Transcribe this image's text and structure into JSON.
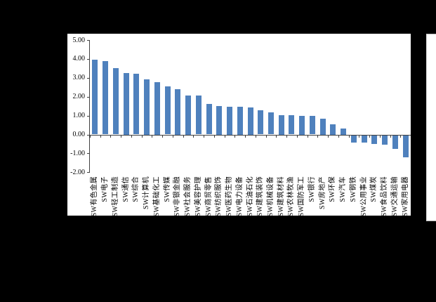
{
  "background_color": "#000000",
  "panel_color": "#ffffff",
  "chart_data": {
    "type": "bar",
    "title": "",
    "xlabel": "",
    "ylabel": "",
    "categories": [
      "SW有色金属",
      "SW电子",
      "SW轻工制造",
      "SW通信",
      "SW综合",
      "SW计算机",
      "SW基础化工",
      "SW传媒",
      "SW非银金融",
      "SW社会服务",
      "SW美容护理",
      "SW商贸零售",
      "SW纺织服饰",
      "SW医药生物",
      "SW电力设备",
      "SW石油石化",
      "SW建筑装饰",
      "SW机械设备",
      "SW建筑材料",
      "SW农林牧渔",
      "SW国防军工",
      "SW银行",
      "SW房地产",
      "SW环保",
      "SW汽车",
      "SW钢铁",
      "SW公用事业",
      "SW煤炭",
      "SW食品饮料",
      "SW交通运输",
      "SW家用电器"
    ],
    "values": [
      3.95,
      3.88,
      3.51,
      3.27,
      3.21,
      2.92,
      2.78,
      2.53,
      2.4,
      2.08,
      2.06,
      1.6,
      1.52,
      1.48,
      1.47,
      1.44,
      1.27,
      1.17,
      1.03,
      1.02,
      0.99,
      0.97,
      0.85,
      0.55,
      0.32,
      -0.4,
      -0.42,
      -0.48,
      -0.52,
      -0.75,
      -1.2
    ],
    "ylim": [
      -2,
      5
    ],
    "ytick_values": [
      5,
      4,
      3,
      2,
      1,
      0,
      -1,
      -2
    ],
    "ytick_labels": [
      "5.00",
      "4.00",
      "3.00",
      "2.00",
      "1.00",
      "0.00",
      "-1.00",
      "-2.00"
    ],
    "bar_color": "#4f81bd",
    "axis_color": "#404040",
    "text_color": "#000000",
    "grid": false,
    "legend": false,
    "category_labels_rotated": "90deg counterclockwise, anchored at axis side"
  }
}
